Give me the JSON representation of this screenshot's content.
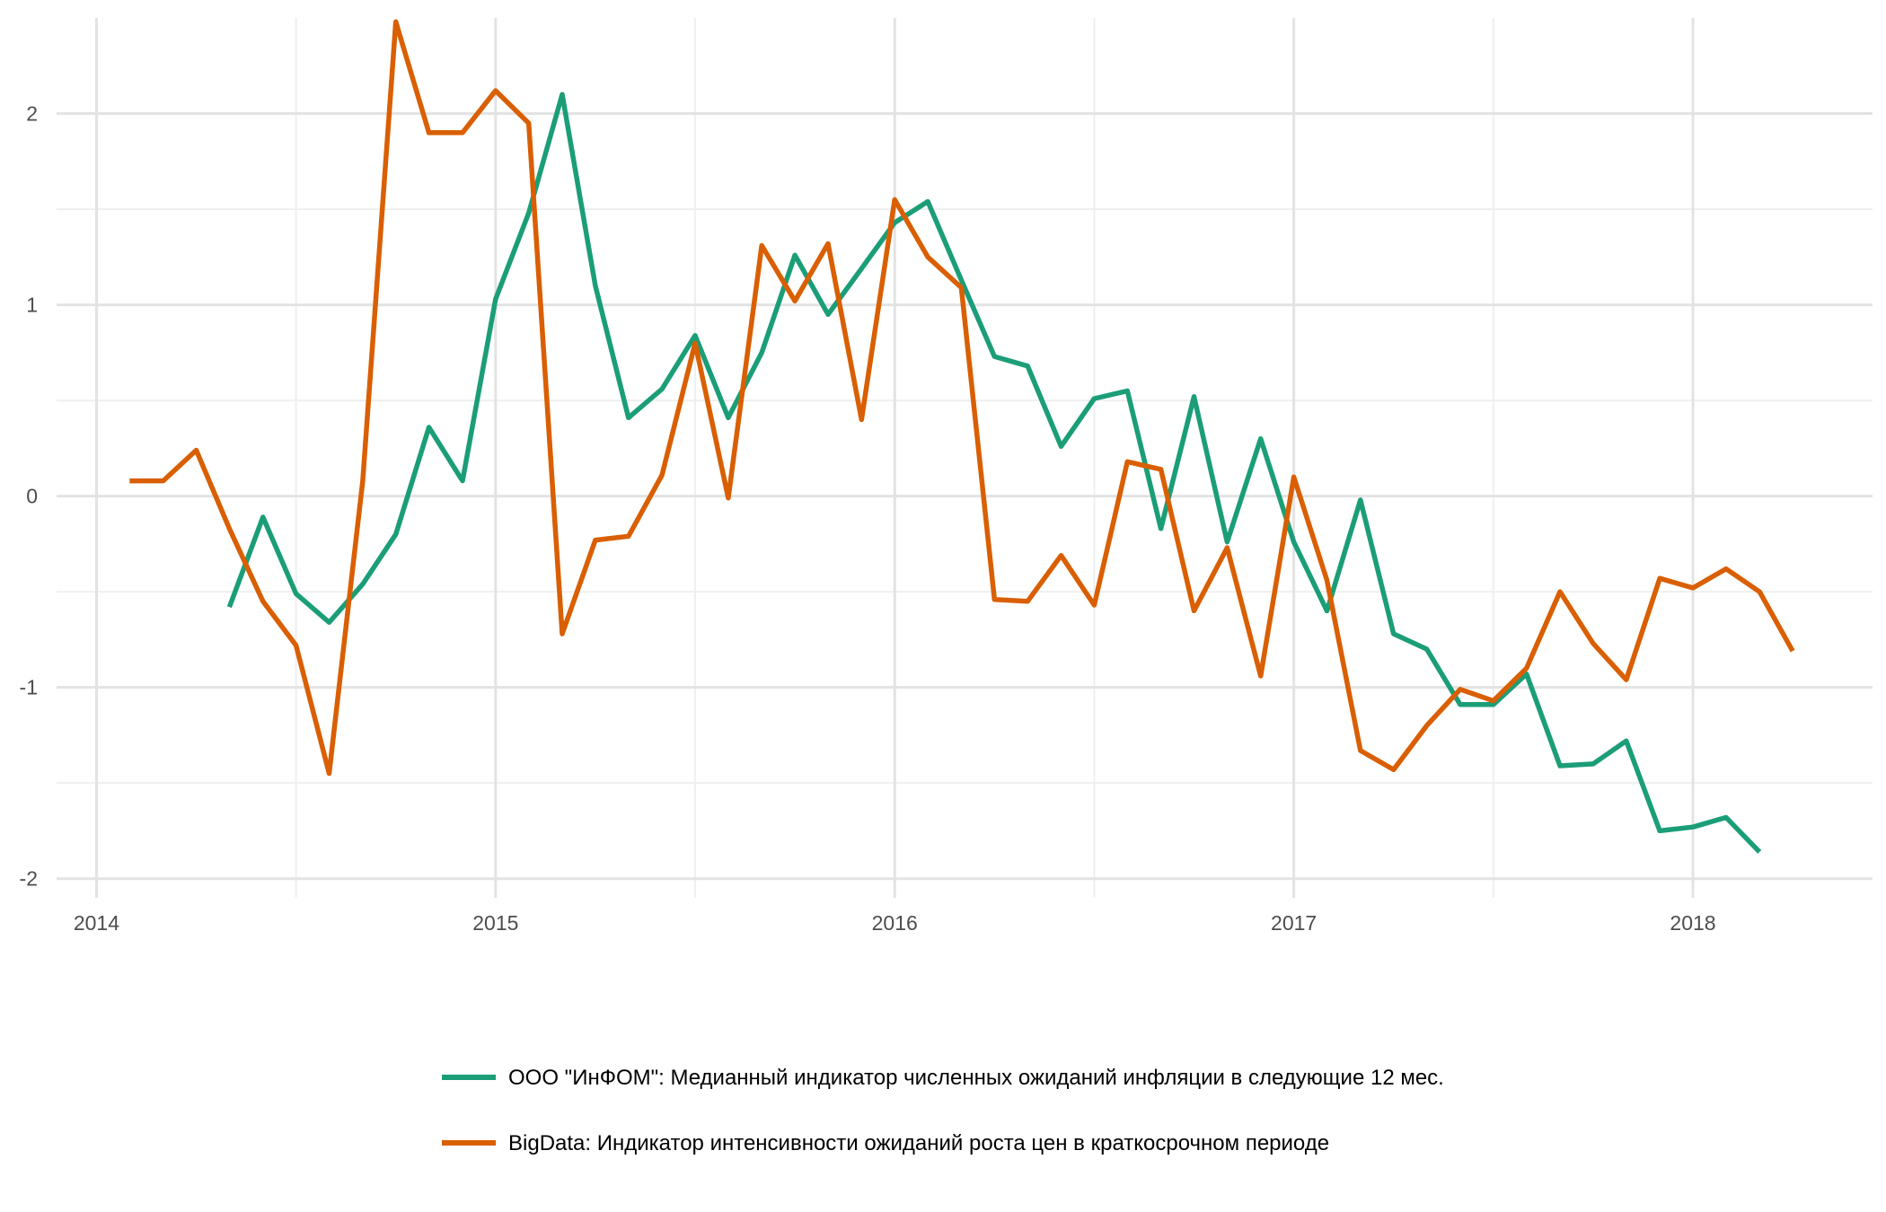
{
  "chart_data": {
    "type": "line",
    "title": "",
    "xlabel": "",
    "ylabel": "",
    "xlim": [
      2013.9,
      2018.45
    ],
    "ylim": [
      -2.1,
      2.5
    ],
    "x_ticks": [
      2014,
      2015,
      2016,
      2017,
      2018
    ],
    "x_tick_labels": [
      "2014",
      "2015",
      "2016",
      "2017",
      "2018"
    ],
    "y_ticks": [
      -2,
      -1,
      0,
      1,
      2
    ],
    "y_tick_labels": [
      "-2",
      "-1",
      "0",
      "1",
      "2"
    ],
    "grid": true,
    "legend_position": "bottom",
    "series": [
      {
        "name": "ООО \"ИнФОМ\": Медианный индикатор численных ожиданий инфляции в следующие 12 мес.",
        "color": "#1b9e77",
        "x": [
          2014.333,
          2014.417,
          2014.5,
          2014.583,
          2014.667,
          2014.75,
          2014.833,
          2014.917,
          2015.0,
          2015.083,
          2015.167,
          2015.25,
          2015.333,
          2015.417,
          2015.5,
          2015.583,
          2015.667,
          2015.75,
          2015.833,
          2015.917,
          2016.0,
          2016.083,
          2016.167,
          2016.25,
          2016.333,
          2016.417,
          2016.5,
          2016.583,
          2016.667,
          2016.75,
          2016.833,
          2016.917,
          2017.0,
          2017.083,
          2017.167,
          2017.25,
          2017.333,
          2017.417,
          2017.5,
          2017.583,
          2017.667,
          2017.75,
          2017.833,
          2017.917,
          2018.0,
          2018.083,
          2018.167
        ],
        "y": [
          -0.58,
          -0.11,
          -0.51,
          -0.66,
          -0.46,
          -0.2,
          0.36,
          0.08,
          1.03,
          1.48,
          2.1,
          1.1,
          0.41,
          0.56,
          0.84,
          0.41,
          0.75,
          1.26,
          0.95,
          1.19,
          1.43,
          1.54,
          1.13,
          0.73,
          0.68,
          0.26,
          0.51,
          0.55,
          -0.17,
          0.52,
          -0.24,
          0.3,
          -0.24,
          -0.6,
          -0.02,
          -0.72,
          -0.8,
          -1.09,
          -1.09,
          -0.93,
          -1.41,
          -1.4,
          -1.28,
          -1.75,
          -1.73,
          -1.68,
          -1.86
        ]
      },
      {
        "name": "BigData: Индикатор интенсивности ожиданий роста цен в краткосрочном периоде",
        "color": "#d95f02",
        "x": [
          2014.083,
          2014.167,
          2014.25,
          2014.333,
          2014.417,
          2014.5,
          2014.583,
          2014.667,
          2014.75,
          2014.833,
          2014.917,
          2015.0,
          2015.083,
          2015.167,
          2015.25,
          2015.333,
          2015.417,
          2015.5,
          2015.583,
          2015.667,
          2015.75,
          2015.833,
          2015.917,
          2016.0,
          2016.083,
          2016.167,
          2016.25,
          2016.333,
          2016.417,
          2016.5,
          2016.583,
          2016.667,
          2016.75,
          2016.833,
          2016.917,
          2017.0,
          2017.083,
          2017.167,
          2017.25,
          2017.333,
          2017.417,
          2017.5,
          2017.583,
          2017.667,
          2017.75,
          2017.833,
          2017.917,
          2018.0,
          2018.083,
          2018.167,
          2018.25
        ],
        "y": [
          0.08,
          0.08,
          0.24,
          -0.17,
          -0.55,
          -0.78,
          -1.45,
          0.08,
          2.48,
          1.9,
          1.9,
          2.12,
          1.95,
          -0.72,
          -0.23,
          -0.21,
          0.11,
          0.8,
          -0.01,
          1.31,
          1.02,
          1.32,
          0.4,
          1.55,
          1.25,
          1.09,
          -0.54,
          -0.55,
          -0.31,
          -0.57,
          0.18,
          0.14,
          -0.6,
          -0.27,
          -0.94,
          0.1,
          -0.44,
          -1.33,
          -1.43,
          -1.2,
          -1.01,
          -1.07,
          -0.9,
          -0.5,
          -0.77,
          -0.96,
          -0.43,
          -0.48,
          -0.38,
          -0.5,
          -0.81
        ]
      }
    ]
  }
}
